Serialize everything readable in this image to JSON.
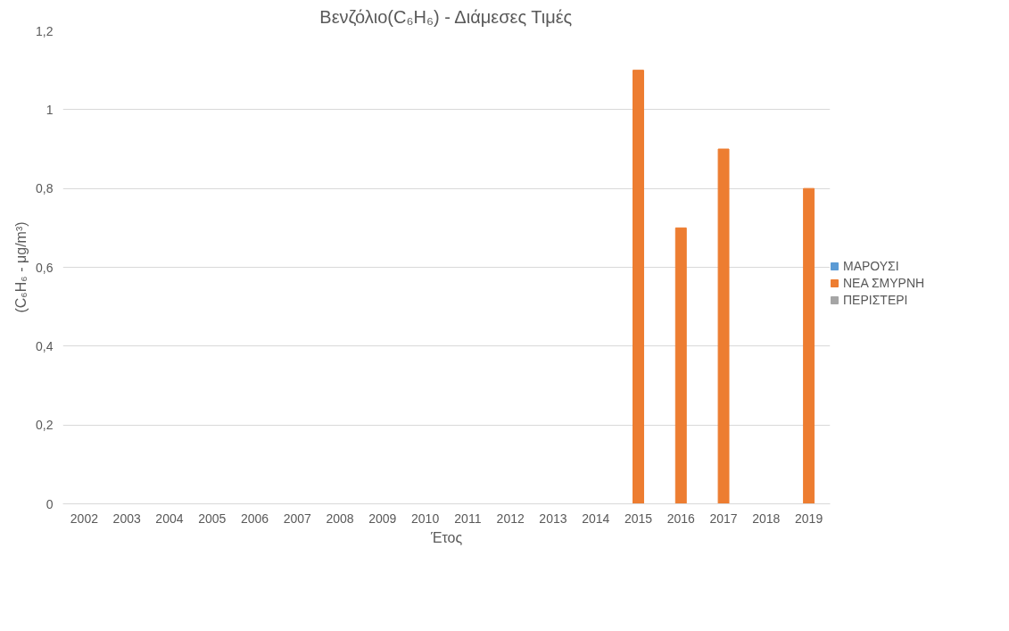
{
  "chart_data": {
    "type": "bar",
    "title": "Βενζόλιο(C₆H₆) - Διάμεσες Τιμές",
    "xlabel": "Έτος",
    "ylabel": "(C₆H₆ - μg/m³)",
    "categories": [
      "2002",
      "2003",
      "2004",
      "2005",
      "2006",
      "2007",
      "2008",
      "2009",
      "2010",
      "2011",
      "2012",
      "2013",
      "2014",
      "2015",
      "2016",
      "2017",
      "2018",
      "2019"
    ],
    "series": [
      {
        "name": "ΜΑΡΟΥΣΙ",
        "color": "#5b9bd5",
        "values": [
          null,
          null,
          null,
          null,
          null,
          null,
          null,
          null,
          null,
          null,
          null,
          null,
          null,
          null,
          null,
          null,
          null,
          null
        ]
      },
      {
        "name": "ΝΕΑ ΣΜΥΡΝΗ",
        "color": "#ed7d31",
        "values": [
          null,
          null,
          null,
          null,
          null,
          null,
          null,
          null,
          null,
          null,
          null,
          null,
          null,
          1.1,
          0.7,
          0.9,
          null,
          0.8
        ]
      },
      {
        "name": "ΠΕΡΙΣΤΕΡΙ",
        "color": "#a5a5a5",
        "values": [
          null,
          null,
          null,
          null,
          null,
          null,
          null,
          null,
          null,
          null,
          null,
          null,
          null,
          null,
          null,
          null,
          null,
          null
        ]
      }
    ],
    "ylim": [
      0,
      1.2
    ],
    "yticks": [
      0,
      {
        "value": 0.2,
        "label": "0,2"
      },
      {
        "value": 0.4,
        "label": "0,4"
      },
      {
        "value": 0.6,
        "label": "0,6"
      },
      {
        "value": 0.8,
        "label": "0,8"
      },
      1,
      {
        "value": 1.2,
        "label": "1,2"
      }
    ],
    "grid": "y",
    "legend": "right"
  }
}
